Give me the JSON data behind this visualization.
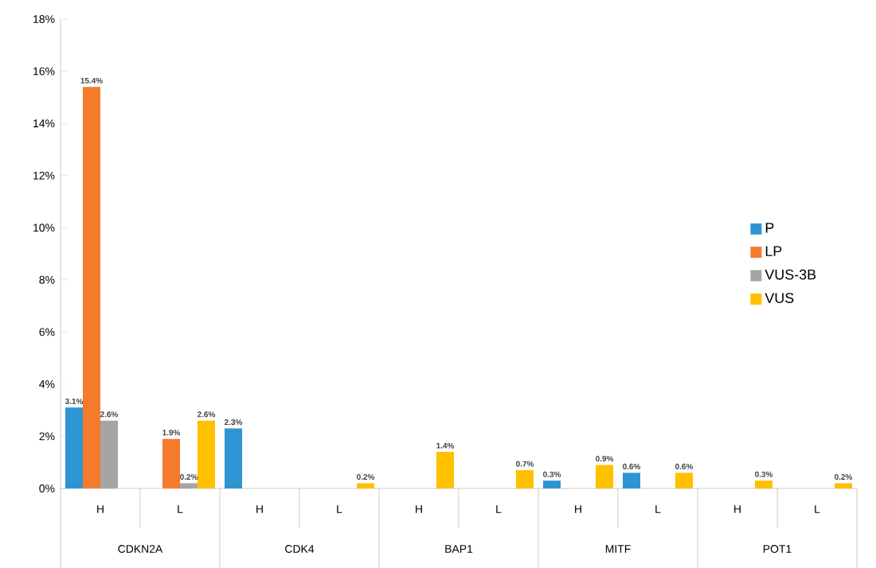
{
  "chart_data": {
    "type": "bar",
    "categories": [
      "H",
      "L",
      "H",
      "L",
      "H",
      "L",
      "H",
      "L",
      "H",
      "L"
    ],
    "series": [
      {
        "name": "P",
        "color": "#2e95d3",
        "values": [
          3.1,
          null,
          2.3,
          null,
          null,
          null,
          0.3,
          0.6,
          null,
          null
        ],
        "value_labels": [
          "3.1%",
          null,
          "2.3%",
          null,
          null,
          null,
          "0.3%",
          "0.6%",
          null,
          null
        ]
      },
      {
        "name": "LP",
        "color": "#f47b2c",
        "values": [
          15.4,
          1.9,
          null,
          null,
          null,
          null,
          null,
          null,
          null,
          null
        ],
        "value_labels": [
          "15.4%",
          "1.9%",
          null,
          null,
          null,
          null,
          null,
          null,
          null,
          null
        ]
      },
      {
        "name": "VUS-3B",
        "color": "#a5a5a5",
        "values": [
          2.6,
          0.2,
          null,
          null,
          null,
          null,
          null,
          null,
          null,
          null
        ],
        "value_labels": [
          "2.6%",
          "0.2%",
          null,
          null,
          null,
          null,
          null,
          null,
          null,
          null
        ]
      },
      {
        "name": "VUS",
        "color": "#ffc000",
        "values": [
          null,
          2.6,
          null,
          0.2,
          1.4,
          0.7,
          0.9,
          0.6,
          0.3,
          0.2
        ],
        "value_labels": [
          null,
          "2.6%",
          null,
          "0.2%",
          "1.4%",
          "0.7%",
          "0.9%",
          "0.6%",
          "0.3%",
          "0.2%"
        ]
      }
    ],
    "annotations": [
      "CDKN2A",
      "CDK4",
      "BAP1",
      "MITF",
      "POT1"
    ],
    "ylim": [
      0,
      18
    ],
    "yticks": [
      {
        "value": 0,
        "label": "0%"
      },
      {
        "value": 2,
        "label": "2%"
      },
      {
        "value": 4,
        "label": "4%"
      },
      {
        "value": 6,
        "label": "6%"
      },
      {
        "value": 8,
        "label": "8%"
      },
      {
        "value": 10,
        "label": "10%"
      },
      {
        "value": 12,
        "label": "12%"
      },
      {
        "value": 14,
        "label": "14%"
      },
      {
        "value": 16,
        "label": "16%"
      },
      {
        "value": 18,
        "label": "18%"
      }
    ],
    "legend": "right",
    "grid": false
  }
}
